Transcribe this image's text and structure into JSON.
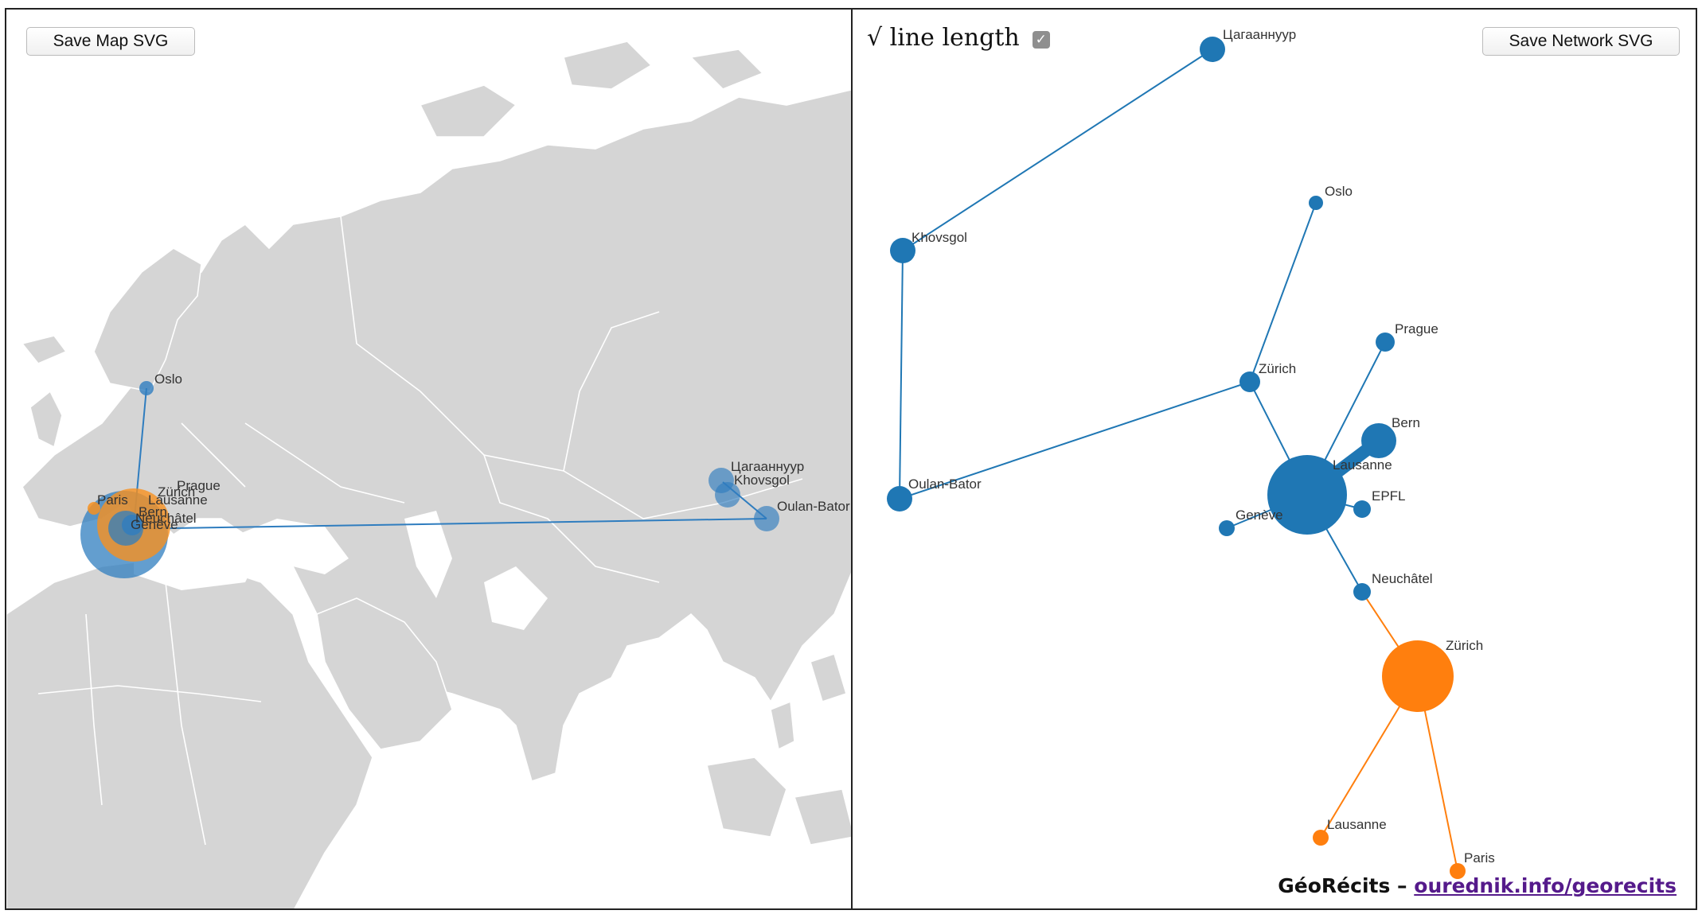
{
  "map_panel": {
    "save_button": "Save Map SVG",
    "labels": [
      "Oslo",
      "Prague",
      "Zürich",
      "Paris",
      "Lausanne",
      "Bern",
      "Neuchâtel",
      "Genève",
      "Цагааннуур",
      "Khovsgol",
      "Oulan-Bator"
    ],
    "colors": {
      "land": "#d5d5d5",
      "border": "#ffffff",
      "blue": "#2f7dbf",
      "orange": "#f7901e"
    }
  },
  "network_panel": {
    "sqrt_label": "√ line length",
    "sqrt_checked": true,
    "save_button": "Save Network SVG",
    "labels": [
      "Цагааннуур",
      "Oslo",
      "Khovsgol",
      "Prague",
      "Zürich",
      "Bern",
      "Lausanne",
      "Oulan-Bator",
      "EPFL",
      "Genève",
      "Neuchâtel",
      "Zürich",
      "Lausanne",
      "Paris"
    ],
    "colors": {
      "blue": "#1f77b4",
      "orange": "#ff7f0e"
    }
  },
  "credit": {
    "prefix": "GéoRécits –",
    "link": "ourednik.info/georecits"
  }
}
